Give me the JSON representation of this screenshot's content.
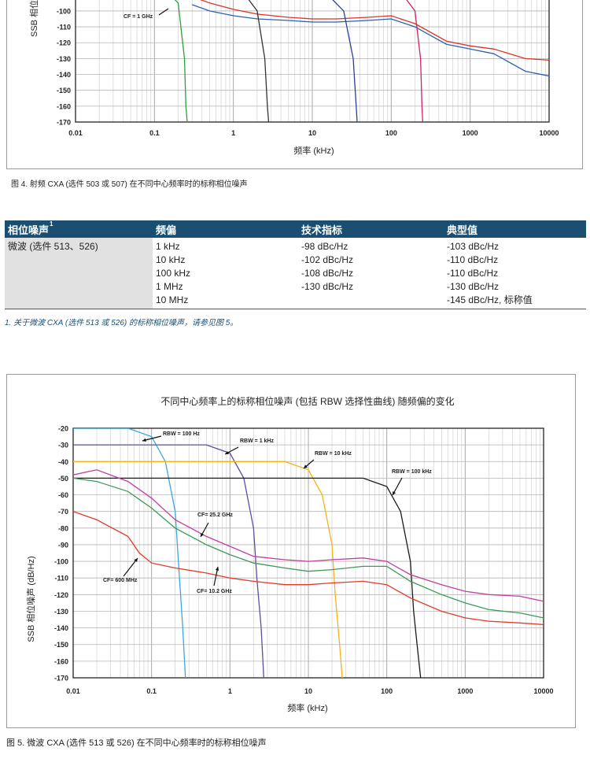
{
  "figure4": {
    "caption": "图 4. 射频 CXA (选件 503 或 507) 在不同中心频率时的标称相位噪声",
    "ylabel": "SSB 相位噪",
    "xlabel": "频率 (kHz)",
    "annotation_cf": "CF = 1 GHz"
  },
  "table": {
    "headers": [
      "相位噪声",
      "频偏",
      "技术指标",
      "典型值"
    ],
    "header_sup": "1",
    "param": "微波 (选件 513、526)",
    "offsets": [
      "1 kHz",
      "10 kHz",
      "100 kHz",
      "1 MHz",
      "10 MHz"
    ],
    "specs": [
      "-98 dBc/Hz",
      "-102 dBc/Hz",
      "-108 dBc/Hz",
      "-130 dBc/Hz"
    ],
    "typicals": [
      "-103 dBc/Hz",
      "-110 dBc/Hz",
      "-110 dBc/Hz",
      "-130 dBc/Hz",
      "-145 dBc/Hz, 标称值"
    ],
    "footnote": "1. 关于微波 CXA (选件 513 或 526) 的标称相位噪声，请参见图 5。"
  },
  "chart_data": [
    {
      "type": "line",
      "xscale": "log",
      "xlim": [
        0.01,
        10000
      ],
      "ylim": [
        -170,
        -100
      ],
      "yticks": [
        -100,
        -110,
        -120,
        -130,
        -140,
        -150,
        -160,
        -170
      ],
      "xticks": [
        0.01,
        0.1,
        1,
        10,
        100,
        1000,
        10000
      ],
      "xtick_labels": [
        "0.01",
        "0.1",
        "1",
        "10",
        "100",
        "1000",
        "10000"
      ],
      "xlabel": "频率 (kHz)",
      "ylabel": "SSB 相位噪",
      "grid": true,
      "series": [
        {
          "color": "#d9352b",
          "x": [
            0.3,
            0.5,
            1,
            2,
            5,
            10,
            20,
            50,
            100,
            200,
            500,
            1000,
            2000,
            5000,
            10000
          ],
          "y": [
            -91,
            -95,
            -99,
            -102,
            -104,
            -105,
            -105,
            -104,
            -103,
            -108,
            -119,
            -122,
            -124,
            -130,
            -131
          ]
        },
        {
          "color": "#2c62b0",
          "x": [
            0.3,
            0.5,
            1,
            2,
            5,
            10,
            20,
            50,
            100,
            200,
            500,
            1000,
            2000,
            5000,
            10000
          ],
          "y": [
            -96,
            -100,
            -103,
            -105,
            -106,
            -107,
            -107,
            -106,
            -105,
            -110,
            -121,
            -124,
            -127,
            -138,
            -141
          ]
        },
        {
          "color": "#2aa13a",
          "x": [
            0.1,
            0.2,
            0.24,
            0.25,
            0.26
          ],
          "y": [
            -80,
            -95,
            -130,
            -160,
            -170
          ]
        },
        {
          "color": "#333333",
          "x": [
            1,
            2,
            2.5,
            2.7,
            2.8
          ],
          "y": [
            -80,
            -100,
            -130,
            -160,
            -170
          ]
        },
        {
          "color": "#2b3f9a",
          "x": [
            10,
            25,
            33,
            36,
            37
          ],
          "y": [
            -80,
            -100,
            -130,
            -160,
            -170
          ]
        },
        {
          "color": "#d0206a",
          "x": [
            100,
            200,
            235,
            245,
            250
          ],
          "y": [
            -80,
            -100,
            -130,
            -160,
            -170
          ]
        }
      ],
      "annotations": [
        "CF = 1 GHz"
      ]
    },
    {
      "type": "line",
      "title": "不同中心频率上的标称相位噪声 (包括 RBW 选择性曲线) 随频偏的变化",
      "xscale": "log",
      "xlim": [
        0.01,
        10000
      ],
      "ylim": [
        -170,
        -20
      ],
      "yticks": [
        -20,
        -30,
        -40,
        -50,
        -60,
        -70,
        -80,
        -90,
        -100,
        -110,
        -120,
        -130,
        -140,
        -150,
        -160,
        -170
      ],
      "xticks": [
        0.01,
        0.1,
        1,
        10,
        100,
        1000,
        10000
      ],
      "xtick_labels": [
        "0.01",
        "0.1",
        "1",
        "10",
        "100",
        "1000",
        "10000"
      ],
      "xlabel": "频率 (kHz)",
      "ylabel": "SSB 相位噪声 (dB/Hz)",
      "grid": true,
      "series": [
        {
          "name": "RBW = 100 Hz",
          "color": "#3aa7e0",
          "x": [
            0.01,
            0.05,
            0.1,
            0.15,
            0.2,
            0.22,
            0.25,
            0.27
          ],
          "y": [
            -20,
            -20,
            -25,
            -40,
            -70,
            -100,
            -140,
            -170
          ]
        },
        {
          "name": "RBW = 1 kHz",
          "color": "#5b4f9e",
          "x": [
            0.01,
            0.5,
            1,
            1.5,
            2,
            2.2,
            2.5,
            2.7
          ],
          "y": [
            -30,
            -30,
            -35,
            -50,
            -80,
            -110,
            -140,
            -170
          ]
        },
        {
          "name": "RBW = 10 kHz",
          "color": "#f5b21a",
          "x": [
            0.01,
            5,
            10,
            15,
            20,
            22,
            25,
            27
          ],
          "y": [
            -40,
            -40,
            -45,
            -60,
            -90,
            -120,
            -150,
            -170
          ]
        },
        {
          "name": "RBW = 100 kHz",
          "color": "#1a1a1a",
          "x": [
            0.01,
            50,
            100,
            150,
            200,
            220,
            250,
            270
          ],
          "y": [
            -50,
            -50,
            -55,
            -70,
            -100,
            -130,
            -155,
            -170
          ]
        },
        {
          "name": "CF= 25.2 GHz",
          "color": "#c13ea3",
          "x": [
            0.01,
            0.02,
            0.05,
            0.1,
            0.2,
            0.5,
            1,
            2,
            5,
            10,
            20,
            50,
            100,
            200,
            500,
            1000,
            2000,
            5000,
            10000
          ],
          "y": [
            -48,
            -45,
            -52,
            -62,
            -75,
            -85,
            -91,
            -97,
            -99,
            -100,
            -99,
            -98,
            -100,
            -108,
            -114,
            -118,
            -120,
            -121,
            -124
          ]
        },
        {
          "name": "CF= 10.2 GHz",
          "color": "#3d9a5a",
          "x": [
            0.01,
            0.02,
            0.05,
            0.1,
            0.2,
            0.5,
            1,
            2,
            5,
            10,
            20,
            50,
            100,
            200,
            500,
            1000,
            2000,
            5000,
            10000
          ],
          "y": [
            -50,
            -52,
            -58,
            -68,
            -80,
            -90,
            -96,
            -101,
            -104,
            -106,
            -105,
            -103,
            -103,
            -112,
            -120,
            -125,
            -129,
            -131,
            -134
          ]
        },
        {
          "name": "CF= 600 MHz",
          "color": "#e03a2a",
          "x": [
            0.01,
            0.02,
            0.05,
            0.07,
            0.1,
            0.2,
            0.5,
            1,
            2,
            5,
            10,
            20,
            50,
            100,
            200,
            500,
            1000,
            2000,
            5000,
            10000
          ],
          "y": [
            -70,
            -75,
            -85,
            -95,
            -101,
            -104,
            -107,
            -110,
            -112,
            -114,
            -114,
            -113,
            -112,
            -114,
            -122,
            -130,
            -134,
            -136,
            -137,
            -138
          ]
        }
      ],
      "annotations": [
        "RBW = 100 Hz",
        "RBW = 1 kHz",
        "RBW = 10 kHz",
        "RBW = 100 kHz",
        "CF= 25.2 GHz",
        "CF= 600 MHz",
        "CF= 10.2 GHz"
      ]
    }
  ],
  "figure5": {
    "caption": "图 5. 微波 CXA (选件 513 或 526) 在不同中心频率时的标称相位噪声"
  }
}
